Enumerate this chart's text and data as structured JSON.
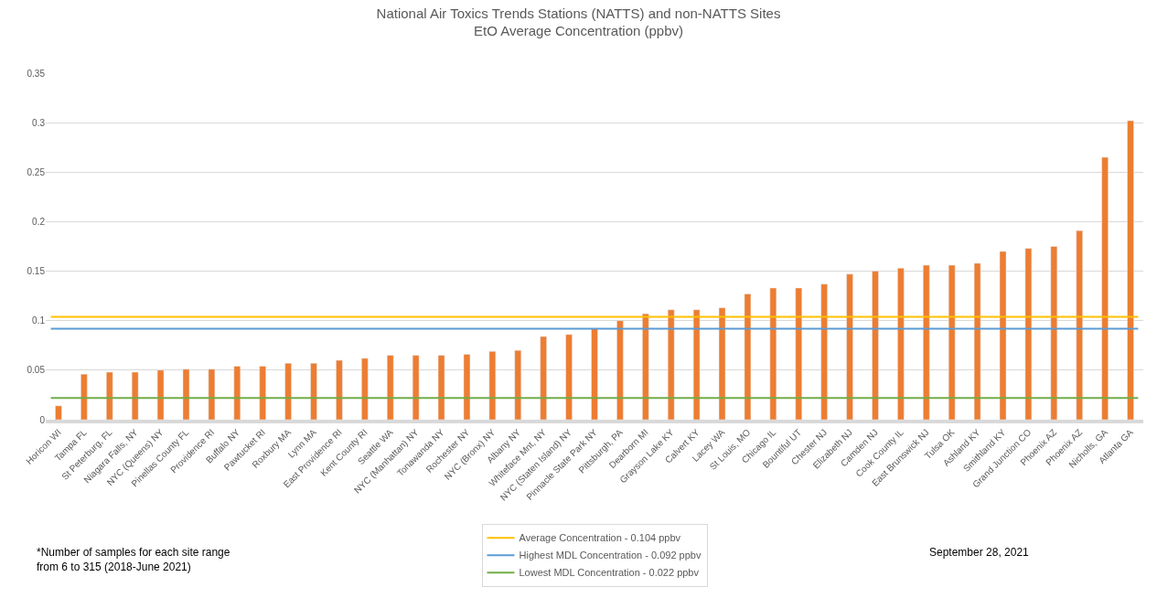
{
  "chart_data": {
    "type": "bar",
    "title": "National Air Toxics Trends Stations (NATTS) and non-NATTS Sites",
    "subtitle": "EtO Average Concentration (ppbv)",
    "categories": [
      "Horicon WI",
      "Tampa FL",
      "St Peterburg, FL",
      "Niagara Falls, NY",
      "NYC (Queens) NY",
      "Pinellas County FL",
      "Providence RI",
      "Buffalo NY",
      "Pawtucket RI",
      "Roxbury MA",
      "Lynn MA",
      "East Providence RI",
      "Kent County RI",
      "Seattle WA",
      "NYC (Manhattan) NY",
      "Tonawanda NY",
      "Rochester NY",
      "NYC (Bronx) NY",
      "Albany NY",
      "Whiteface Mnt, NY",
      "NYC (Staten Island) NY",
      "Pinnacle State Park NY",
      "Pittsburgh, PA",
      "Dearborn MI",
      "Grayson Lake KY",
      "Calvert KY",
      "Lacey WA",
      "St Louis, MO",
      "Chicago IL",
      "Bountiful UT",
      "Chester NJ",
      "Elizabeth NJ",
      "Camden NJ",
      "Cook County IL",
      "East Brunswick NJ",
      "Tulsa OK",
      "Ashland KY",
      "Smithland KY",
      "Grand Junction CO",
      "Phoenix AZ",
      "Phoenix AZ",
      "Nicholls, GA",
      "Atlanta GA"
    ],
    "values": [
      0.014,
      0.046,
      0.048,
      0.048,
      0.05,
      0.051,
      0.051,
      0.054,
      0.054,
      0.057,
      0.057,
      0.06,
      0.062,
      0.065,
      0.065,
      0.065,
      0.066,
      0.069,
      0.07,
      0.084,
      0.086,
      0.092,
      0.1,
      0.107,
      0.111,
      0.111,
      0.113,
      0.127,
      0.133,
      0.133,
      0.137,
      0.147,
      0.15,
      0.153,
      0.156,
      0.156,
      0.158,
      0.17,
      0.173,
      0.175,
      0.191,
      0.265,
      0.302
    ],
    "color": "#ed7d31",
    "ylim": [
      0,
      0.35
    ],
    "yticks": [
      0,
      0.05,
      0.1,
      0.15,
      0.2,
      0.25,
      0.3,
      0.35
    ],
    "grid": "y",
    "legend": "bottom",
    "ref_lines": [
      {
        "axis": "y",
        "value": 0.104,
        "label": "Average Concentration - 0.104 ppbv",
        "color": "#ffc000"
      },
      {
        "axis": "y",
        "value": 0.092,
        "label": "Highest MDL Concentration - 0.092 ppbv",
        "color": "#5b9bd5"
      },
      {
        "axis": "y",
        "value": 0.022,
        "label": "Lowest MDL Concentration - 0.022 ppbv",
        "color": "#70ad47"
      }
    ],
    "annotations": [
      "*Number of samples for each site range\nfrom 6 to 315 (2018-June 2021)",
      "September 28, 2021"
    ]
  }
}
